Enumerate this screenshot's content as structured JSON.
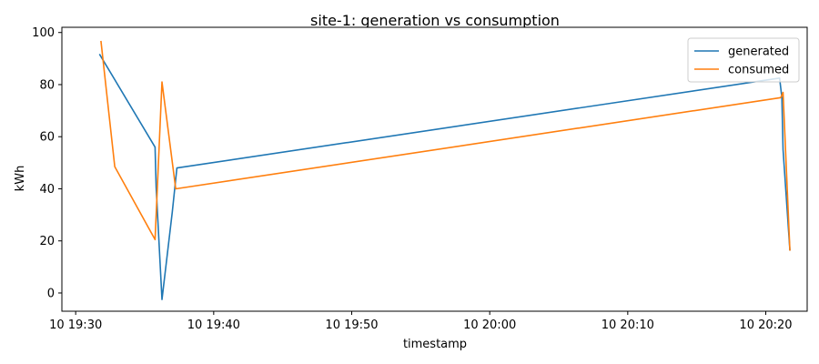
{
  "chart_data": {
    "type": "line",
    "title": "site-1: generation vs consumption",
    "xlabel": "timestamp",
    "ylabel": "kWh",
    "xlim": [
      "10 19:29:00",
      "10 20:23:00"
    ],
    "ylim": [
      -7,
      102
    ],
    "x_ticks": [
      {
        "t": "10 19:30:00",
        "label": "10 19:30"
      },
      {
        "t": "10 19:40:00",
        "label": "10 19:40"
      },
      {
        "t": "10 19:50:00",
        "label": "10 19:50"
      },
      {
        "t": "10 20:00:00",
        "label": "10 20:00"
      },
      {
        "t": "10 20:10:00",
        "label": "10 20:10"
      },
      {
        "t": "10 20:20:00",
        "label": "10 20:20"
      }
    ],
    "y_ticks": [
      0,
      20,
      40,
      60,
      80,
      100
    ],
    "grid": false,
    "legend": "top-right",
    "series": [
      {
        "name": "generated",
        "color": "#1f77b4",
        "points": [
          {
            "t": "10 19:31:45",
            "y": 91.5
          },
          {
            "t": "10 19:35:45",
            "y": 56
          },
          {
            "t": "10 19:35:50",
            "y": 40.5
          },
          {
            "t": "10 19:36:15",
            "y": -2.5
          },
          {
            "t": "10 19:37:00",
            "y": 31
          },
          {
            "t": "10 19:37:20",
            "y": 48
          },
          {
            "t": "10 20:21:00",
            "y": 82.5
          },
          {
            "t": "10 20:21:10",
            "y": 75
          },
          {
            "t": "10 20:21:15",
            "y": 55
          },
          {
            "t": "10 20:21:45",
            "y": 16.5
          }
        ]
      },
      {
        "name": "consumed",
        "color": "#ff7f0e",
        "points": [
          {
            "t": "10 19:31:50",
            "y": 96.5
          },
          {
            "t": "10 19:32:50",
            "y": 48.5
          },
          {
            "t": "10 19:35:45",
            "y": 20.5
          },
          {
            "t": "10 19:36:15",
            "y": 81
          },
          {
            "t": "10 19:37:15",
            "y": 40
          },
          {
            "t": "10 20:21:05",
            "y": 75
          },
          {
            "t": "10 20:21:15",
            "y": 77
          },
          {
            "t": "10 20:21:45",
            "y": 16.5
          }
        ]
      }
    ]
  }
}
